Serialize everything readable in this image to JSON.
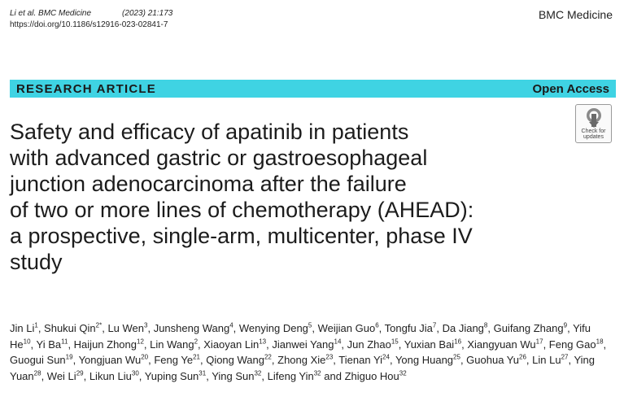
{
  "header": {
    "citation_journal": "Li et al. BMC Medicine",
    "citation_year": "(2023) 21:173",
    "doi": "https://doi.org/10.1186/s12916-023-02841-7",
    "journal_brand": "BMC Medicine"
  },
  "banner": {
    "article_type": "RESEARCH ARTICLE",
    "access": "Open Access"
  },
  "badge": {
    "line1": "Check for",
    "line2": "updates",
    "icon": "check-for-updates-icon"
  },
  "title_lines": [
    "Safety and efficacy of apatinib in patients",
    "with advanced gastric or gastroesophageal",
    "junction adenocarcinoma after the failure",
    "of two or more lines of chemotherapy (AHEAD):",
    "a prospective, single-arm, multicenter, phase IV",
    "study"
  ],
  "authors": [
    {
      "name": "Jin Li",
      "sup": "1"
    },
    {
      "name": "Shukui Qin",
      "sup": "2*"
    },
    {
      "name": "Lu Wen",
      "sup": "3"
    },
    {
      "name": "Junsheng Wang",
      "sup": "4"
    },
    {
      "name": "Wenying Deng",
      "sup": "5"
    },
    {
      "name": "Weijian Guo",
      "sup": "6"
    },
    {
      "name": "Tongfu Jia",
      "sup": "7"
    },
    {
      "name": "Da Jiang",
      "sup": "8"
    },
    {
      "name": "Guifang Zhang",
      "sup": "9"
    },
    {
      "name": "Yifu He",
      "sup": "10"
    },
    {
      "name": "Yi Ba",
      "sup": "11"
    },
    {
      "name": "Haijun Zhong",
      "sup": "12"
    },
    {
      "name": "Lin Wang",
      "sup": "2"
    },
    {
      "name": "Xiaoyan Lin",
      "sup": "13"
    },
    {
      "name": "Jianwei Yang",
      "sup": "14"
    },
    {
      "name": "Jun Zhao",
      "sup": "15"
    },
    {
      "name": "Yuxian Bai",
      "sup": "16"
    },
    {
      "name": "Xiangyuan Wu",
      "sup": "17"
    },
    {
      "name": "Feng Gao",
      "sup": "18"
    },
    {
      "name": "Guogui Sun",
      "sup": "19"
    },
    {
      "name": "Yongjuan Wu",
      "sup": "20"
    },
    {
      "name": "Feng Ye",
      "sup": "21"
    },
    {
      "name": "Qiong Wang",
      "sup": "22"
    },
    {
      "name": "Zhong Xie",
      "sup": "23"
    },
    {
      "name": "Tienan Yi",
      "sup": "24"
    },
    {
      "name": "Yong Huang",
      "sup": "25"
    },
    {
      "name": "Guohua Yu",
      "sup": "26"
    },
    {
      "name": "Lin Lu",
      "sup": "27"
    },
    {
      "name": "Ying Yuan",
      "sup": "28"
    },
    {
      "name": "Wei Li",
      "sup": "29"
    },
    {
      "name": "Likun Liu",
      "sup": "30"
    },
    {
      "name": "Yuping Sun",
      "sup": "31"
    },
    {
      "name": "Ying Sun",
      "sup": "32"
    },
    {
      "name": "Lifeng Yin",
      "sup": "32"
    },
    {
      "name": "Zhiguo Hou",
      "sup": "32"
    }
  ],
  "author_final_conjunction": "and"
}
